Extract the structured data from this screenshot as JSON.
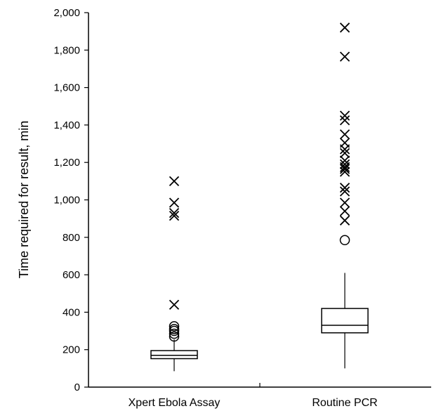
{
  "chart_data": {
    "type": "box",
    "title": "",
    "xlabel": "",
    "ylabel": "Time required for result, min",
    "ylim": [
      0,
      2000
    ],
    "yticks": [
      0,
      200,
      400,
      600,
      800,
      1000,
      1200,
      1400,
      1600,
      1800,
      2000
    ],
    "ytick_labels": [
      "0",
      "200",
      "400",
      "600",
      "800",
      "1,000",
      "1,200",
      "1,400",
      "1,600",
      "1,800",
      "2,000"
    ],
    "grid": false,
    "legend": "none",
    "categories": [
      "Xpert Ebola Assay",
      "Routine PCR"
    ],
    "boxes": [
      {
        "category": "Xpert Ebola Assay",
        "whisker_low": 85,
        "q1": 152,
        "median": 170,
        "q3": 195,
        "whisker_high": 255,
        "outliers_circle": [
          270,
          285,
          300,
          310,
          325
        ],
        "outliers_extreme": [
          440,
          915,
          930,
          985,
          1100
        ]
      },
      {
        "category": "Routine PCR",
        "whisker_low": 100,
        "q1": 290,
        "median": 330,
        "q3": 420,
        "whisker_high": 610,
        "outliers_circle": [
          785
        ],
        "outliers_extreme": [
          890,
          940,
          985,
          1045,
          1065,
          1150,
          1165,
          1175,
          1190,
          1210,
          1250,
          1270,
          1305,
          1350,
          1425,
          1450,
          1765,
          1920
        ]
      }
    ],
    "colors": {
      "stroke": "#000000",
      "background": "#ffffff"
    }
  }
}
